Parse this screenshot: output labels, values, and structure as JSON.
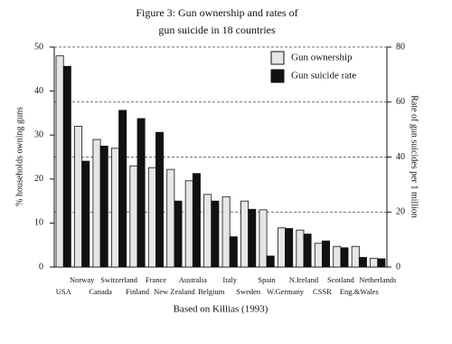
{
  "chart_data": {
    "type": "bar",
    "title": [
      "Figure 3: Gun ownership and rates of",
      "gun suicide in 18 countries"
    ],
    "x_label": "Based on Killias (1993)",
    "y_label": "% households owning guns",
    "y2_label": "Rate of gun suicides per 1 million",
    "categories": [
      "USA",
      "Norway",
      "Canada",
      "Switzerland",
      "Finland",
      "France",
      "New Zealand",
      "Australia",
      "Belgium",
      "Italy",
      "Sweden",
      "Spain",
      "W.Germany",
      "N.Ireland",
      "CSSR",
      "Scotland",
      "Eng.&Wales",
      "Netherlands"
    ],
    "series": [
      {
        "name": "Gun ownership",
        "color": "#e6e6e6",
        "values": [
          48,
          32,
          29,
          27,
          23,
          22.6,
          22.2,
          19.6,
          16.5,
          16,
          15,
          13,
          8.9,
          8.4,
          5.4,
          4.7,
          4.7,
          2
        ]
      },
      {
        "name": "Gun suicide rate",
        "color": "#111111",
        "axis": "y2",
        "values": [
          73,
          38.5,
          44,
          57,
          54,
          49,
          24,
          34,
          24,
          11,
          21,
          4,
          14,
          12,
          9.5,
          7,
          3.5,
          3
        ]
      }
    ],
    "ylim": [
      0,
      50
    ],
    "yticks": [
      0,
      10,
      20,
      30,
      40,
      50
    ],
    "y2lim": [
      0,
      80
    ],
    "y2ticks": [
      0,
      20,
      40,
      60,
      80
    ],
    "grid": true,
    "legend": "top-right"
  }
}
